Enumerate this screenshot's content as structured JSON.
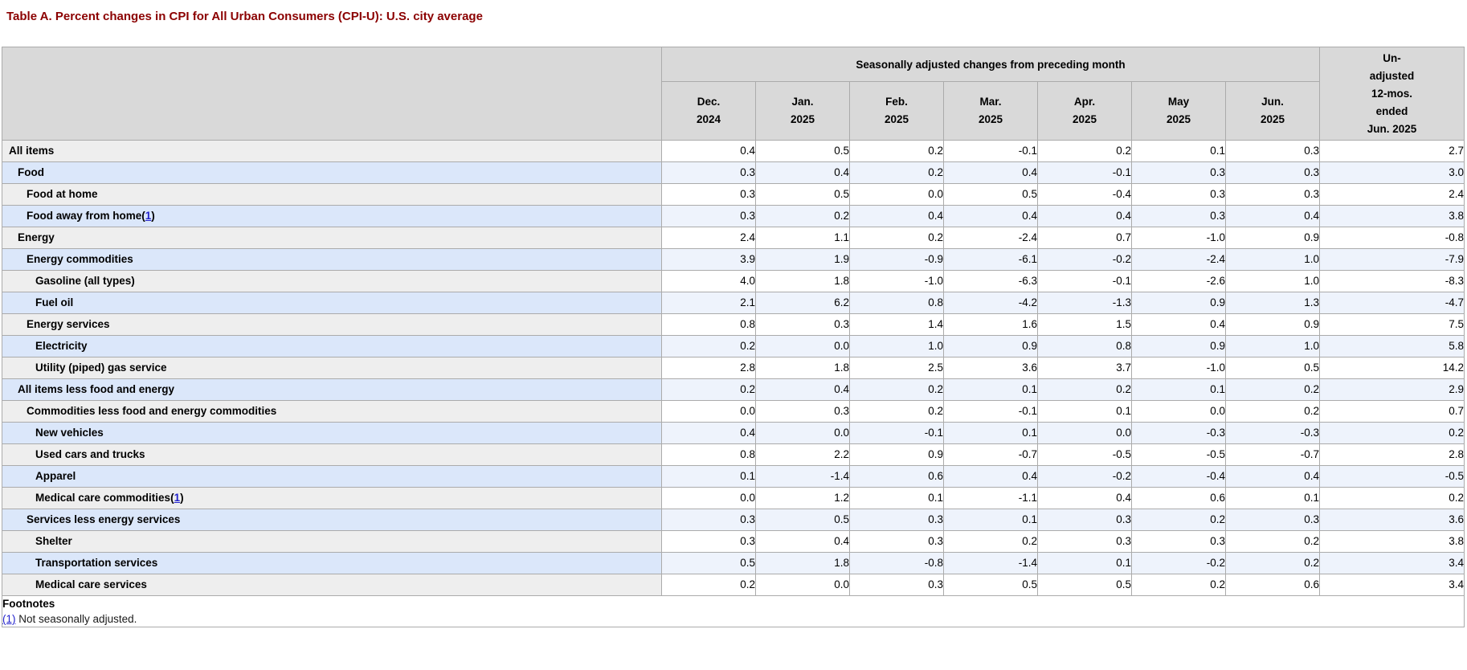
{
  "title": "Table A. Percent changes in CPI for All Urban Consumers (CPI-U): U.S. city average",
  "colors": {
    "title": "#8b0000",
    "header_bg": "#d9d9d9",
    "row_gray_label": "#eeeeee",
    "row_gray_data": "#ffffff",
    "row_blue_label": "#dbe7fa",
    "row_blue_data": "#eef3fc",
    "link": "#2222cc"
  },
  "table": {
    "banner": "Seasonally adjusted changes from preceding month",
    "month_columns": [
      {
        "line1": "Dec.",
        "line2": "2024"
      },
      {
        "line1": "Jan.",
        "line2": "2025"
      },
      {
        "line1": "Feb.",
        "line2": "2025"
      },
      {
        "line1": "Mar.",
        "line2": "2025"
      },
      {
        "line1": "Apr.",
        "line2": "2025"
      },
      {
        "line1": "May",
        "line2": "2025"
      },
      {
        "line1": "Jun.",
        "line2": "2025"
      }
    ],
    "unadjusted_header_lines": [
      "Un-",
      "adjusted",
      "12-mos.",
      "ended",
      "Jun. 2025"
    ],
    "rows": [
      {
        "label": "All items",
        "indent": 0,
        "shade": "gray",
        "footnote": null,
        "values": [
          "0.4",
          "0.5",
          "0.2",
          "-0.1",
          "0.2",
          "0.1",
          "0.3"
        ],
        "unadjusted": "2.7"
      },
      {
        "label": "Food",
        "indent": 1,
        "shade": "blue",
        "footnote": null,
        "values": [
          "0.3",
          "0.4",
          "0.2",
          "0.4",
          "-0.1",
          "0.3",
          "0.3"
        ],
        "unadjusted": "3.0"
      },
      {
        "label": "Food at home",
        "indent": 2,
        "shade": "gray",
        "footnote": null,
        "values": [
          "0.3",
          "0.5",
          "0.0",
          "0.5",
          "-0.4",
          "0.3",
          "0.3"
        ],
        "unadjusted": "2.4"
      },
      {
        "label": "Food away from home",
        "indent": 2,
        "shade": "blue",
        "footnote": "1",
        "values": [
          "0.3",
          "0.2",
          "0.4",
          "0.4",
          "0.4",
          "0.3",
          "0.4"
        ],
        "unadjusted": "3.8"
      },
      {
        "label": "Energy",
        "indent": 1,
        "shade": "gray",
        "footnote": null,
        "values": [
          "2.4",
          "1.1",
          "0.2",
          "-2.4",
          "0.7",
          "-1.0",
          "0.9"
        ],
        "unadjusted": "-0.8"
      },
      {
        "label": "Energy commodities",
        "indent": 2,
        "shade": "blue",
        "footnote": null,
        "values": [
          "3.9",
          "1.9",
          "-0.9",
          "-6.1",
          "-0.2",
          "-2.4",
          "1.0"
        ],
        "unadjusted": "-7.9"
      },
      {
        "label": "Gasoline (all types)",
        "indent": 3,
        "shade": "gray",
        "footnote": null,
        "values": [
          "4.0",
          "1.8",
          "-1.0",
          "-6.3",
          "-0.1",
          "-2.6",
          "1.0"
        ],
        "unadjusted": "-8.3"
      },
      {
        "label": "Fuel oil",
        "indent": 3,
        "shade": "blue",
        "footnote": null,
        "values": [
          "2.1",
          "6.2",
          "0.8",
          "-4.2",
          "-1.3",
          "0.9",
          "1.3"
        ],
        "unadjusted": "-4.7"
      },
      {
        "label": "Energy services",
        "indent": 2,
        "shade": "gray",
        "footnote": null,
        "values": [
          "0.8",
          "0.3",
          "1.4",
          "1.6",
          "1.5",
          "0.4",
          "0.9"
        ],
        "unadjusted": "7.5"
      },
      {
        "label": "Electricity",
        "indent": 3,
        "shade": "blue",
        "footnote": null,
        "values": [
          "0.2",
          "0.0",
          "1.0",
          "0.9",
          "0.8",
          "0.9",
          "1.0"
        ],
        "unadjusted": "5.8"
      },
      {
        "label": "Utility (piped) gas service",
        "indent": 3,
        "shade": "gray",
        "footnote": null,
        "values": [
          "2.8",
          "1.8",
          "2.5",
          "3.6",
          "3.7",
          "-1.0",
          "0.5"
        ],
        "unadjusted": "14.2"
      },
      {
        "label": "All items less food and energy",
        "indent": 1,
        "shade": "blue",
        "footnote": null,
        "values": [
          "0.2",
          "0.4",
          "0.2",
          "0.1",
          "0.2",
          "0.1",
          "0.2"
        ],
        "unadjusted": "2.9"
      },
      {
        "label": "Commodities less food and energy commodities",
        "indent": 2,
        "shade": "gray",
        "footnote": null,
        "values": [
          "0.0",
          "0.3",
          "0.2",
          "-0.1",
          "0.1",
          "0.0",
          "0.2"
        ],
        "unadjusted": "0.7"
      },
      {
        "label": "New vehicles",
        "indent": 3,
        "shade": "blue",
        "footnote": null,
        "values": [
          "0.4",
          "0.0",
          "-0.1",
          "0.1",
          "0.0",
          "-0.3",
          "-0.3"
        ],
        "unadjusted": "0.2"
      },
      {
        "label": "Used cars and trucks",
        "indent": 3,
        "shade": "gray",
        "footnote": null,
        "values": [
          "0.8",
          "2.2",
          "0.9",
          "-0.7",
          "-0.5",
          "-0.5",
          "-0.7"
        ],
        "unadjusted": "2.8"
      },
      {
        "label": "Apparel",
        "indent": 3,
        "shade": "blue",
        "footnote": null,
        "values": [
          "0.1",
          "-1.4",
          "0.6",
          "0.4",
          "-0.2",
          "-0.4",
          "0.4"
        ],
        "unadjusted": "-0.5"
      },
      {
        "label": "Medical care commodities",
        "indent": 3,
        "shade": "gray",
        "footnote": "1",
        "values": [
          "0.0",
          "1.2",
          "0.1",
          "-1.1",
          "0.4",
          "0.6",
          "0.1"
        ],
        "unadjusted": "0.2"
      },
      {
        "label": "Services less energy services",
        "indent": 2,
        "shade": "blue",
        "footnote": null,
        "values": [
          "0.3",
          "0.5",
          "0.3",
          "0.1",
          "0.3",
          "0.2",
          "0.3"
        ],
        "unadjusted": "3.6"
      },
      {
        "label": "Shelter",
        "indent": 3,
        "shade": "gray",
        "footnote": null,
        "values": [
          "0.3",
          "0.4",
          "0.3",
          "0.2",
          "0.3",
          "0.3",
          "0.2"
        ],
        "unadjusted": "3.8"
      },
      {
        "label": "Transportation services",
        "indent": 3,
        "shade": "blue",
        "footnote": null,
        "values": [
          "0.5",
          "1.8",
          "-0.8",
          "-1.4",
          "0.1",
          "-0.2",
          "0.2"
        ],
        "unadjusted": "3.4"
      },
      {
        "label": "Medical care services",
        "indent": 3,
        "shade": "gray",
        "footnote": null,
        "values": [
          "0.2",
          "0.0",
          "0.3",
          "0.5",
          "0.5",
          "0.2",
          "0.6"
        ],
        "unadjusted": "3.4"
      }
    ],
    "footnotes": {
      "heading": "Footnotes",
      "items": [
        {
          "marker": "(1)",
          "text": "Not seasonally adjusted."
        }
      ]
    }
  }
}
